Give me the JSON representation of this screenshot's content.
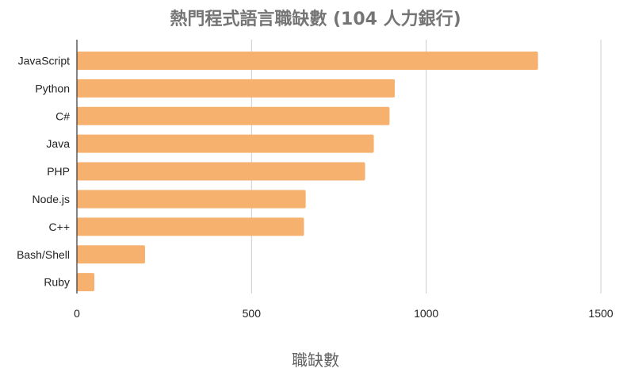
{
  "chart_data": {
    "type": "bar",
    "orientation": "horizontal",
    "title": "熱門程式語言職缺數 (104 人力銀行)",
    "xlabel": "職缺數",
    "ylabel": "",
    "categories": [
      "JavaScript",
      "Python",
      "C#",
      "Java",
      "PHP",
      "Node.js",
      "C++",
      "Bash/Shell",
      "Ruby"
    ],
    "values": [
      1320,
      910,
      895,
      850,
      825,
      655,
      650,
      195,
      50
    ],
    "xlim": [
      0,
      1500
    ],
    "xticks": [
      "0",
      "500",
      "1000",
      "1500"
    ],
    "grid": "vertical",
    "legend": "none",
    "bar_color": "#f6b16f",
    "grid_color": "#cccccc",
    "axis_color": "#333333"
  }
}
